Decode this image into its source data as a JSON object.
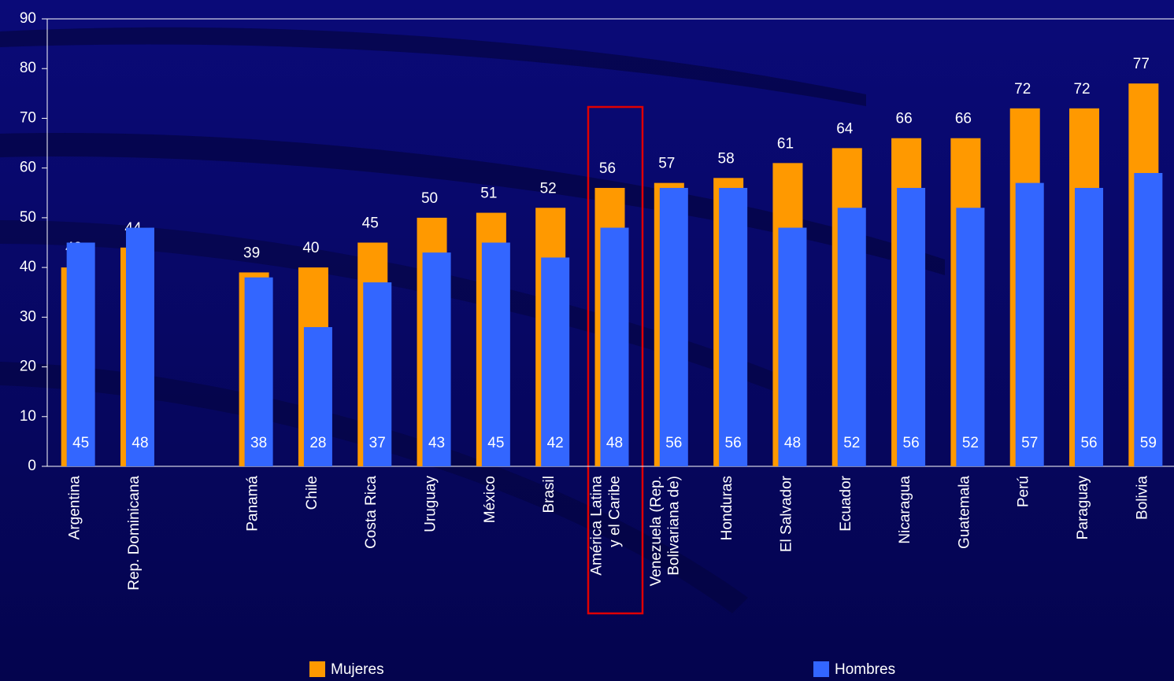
{
  "chart_data": {
    "type": "bar",
    "categories": [
      "Argentina",
      "Rep. Dominicana",
      null,
      "Panamá",
      "Chile",
      "Costa Rica",
      "Uruguay",
      "México",
      "Brasil",
      "América Latina\ny el Caribe",
      "Venezuela (Rep.\nBolivariana de)",
      "Honduras",
      "El Salvador",
      "Ecuador",
      "Nicaragua",
      "Guatemala",
      "Perú",
      "Paraguay",
      "Bolivia"
    ],
    "series": [
      {
        "name": "Mujeres",
        "color": "#ff9900",
        "values": [
          40,
          44,
          null,
          39,
          40,
          45,
          50,
          51,
          52,
          56,
          57,
          58,
          61,
          64,
          66,
          66,
          72,
          72,
          77
        ]
      },
      {
        "name": "Hombres",
        "color": "#3366ff",
        "values": [
          45,
          48,
          null,
          38,
          28,
          37,
          43,
          45,
          42,
          48,
          56,
          56,
          48,
          52,
          56,
          52,
          57,
          56,
          59
        ]
      }
    ],
    "ylim": [
      0,
      90
    ],
    "yticks": [
      0,
      10,
      20,
      30,
      40,
      50,
      60,
      70,
      80,
      90
    ]
  }
}
